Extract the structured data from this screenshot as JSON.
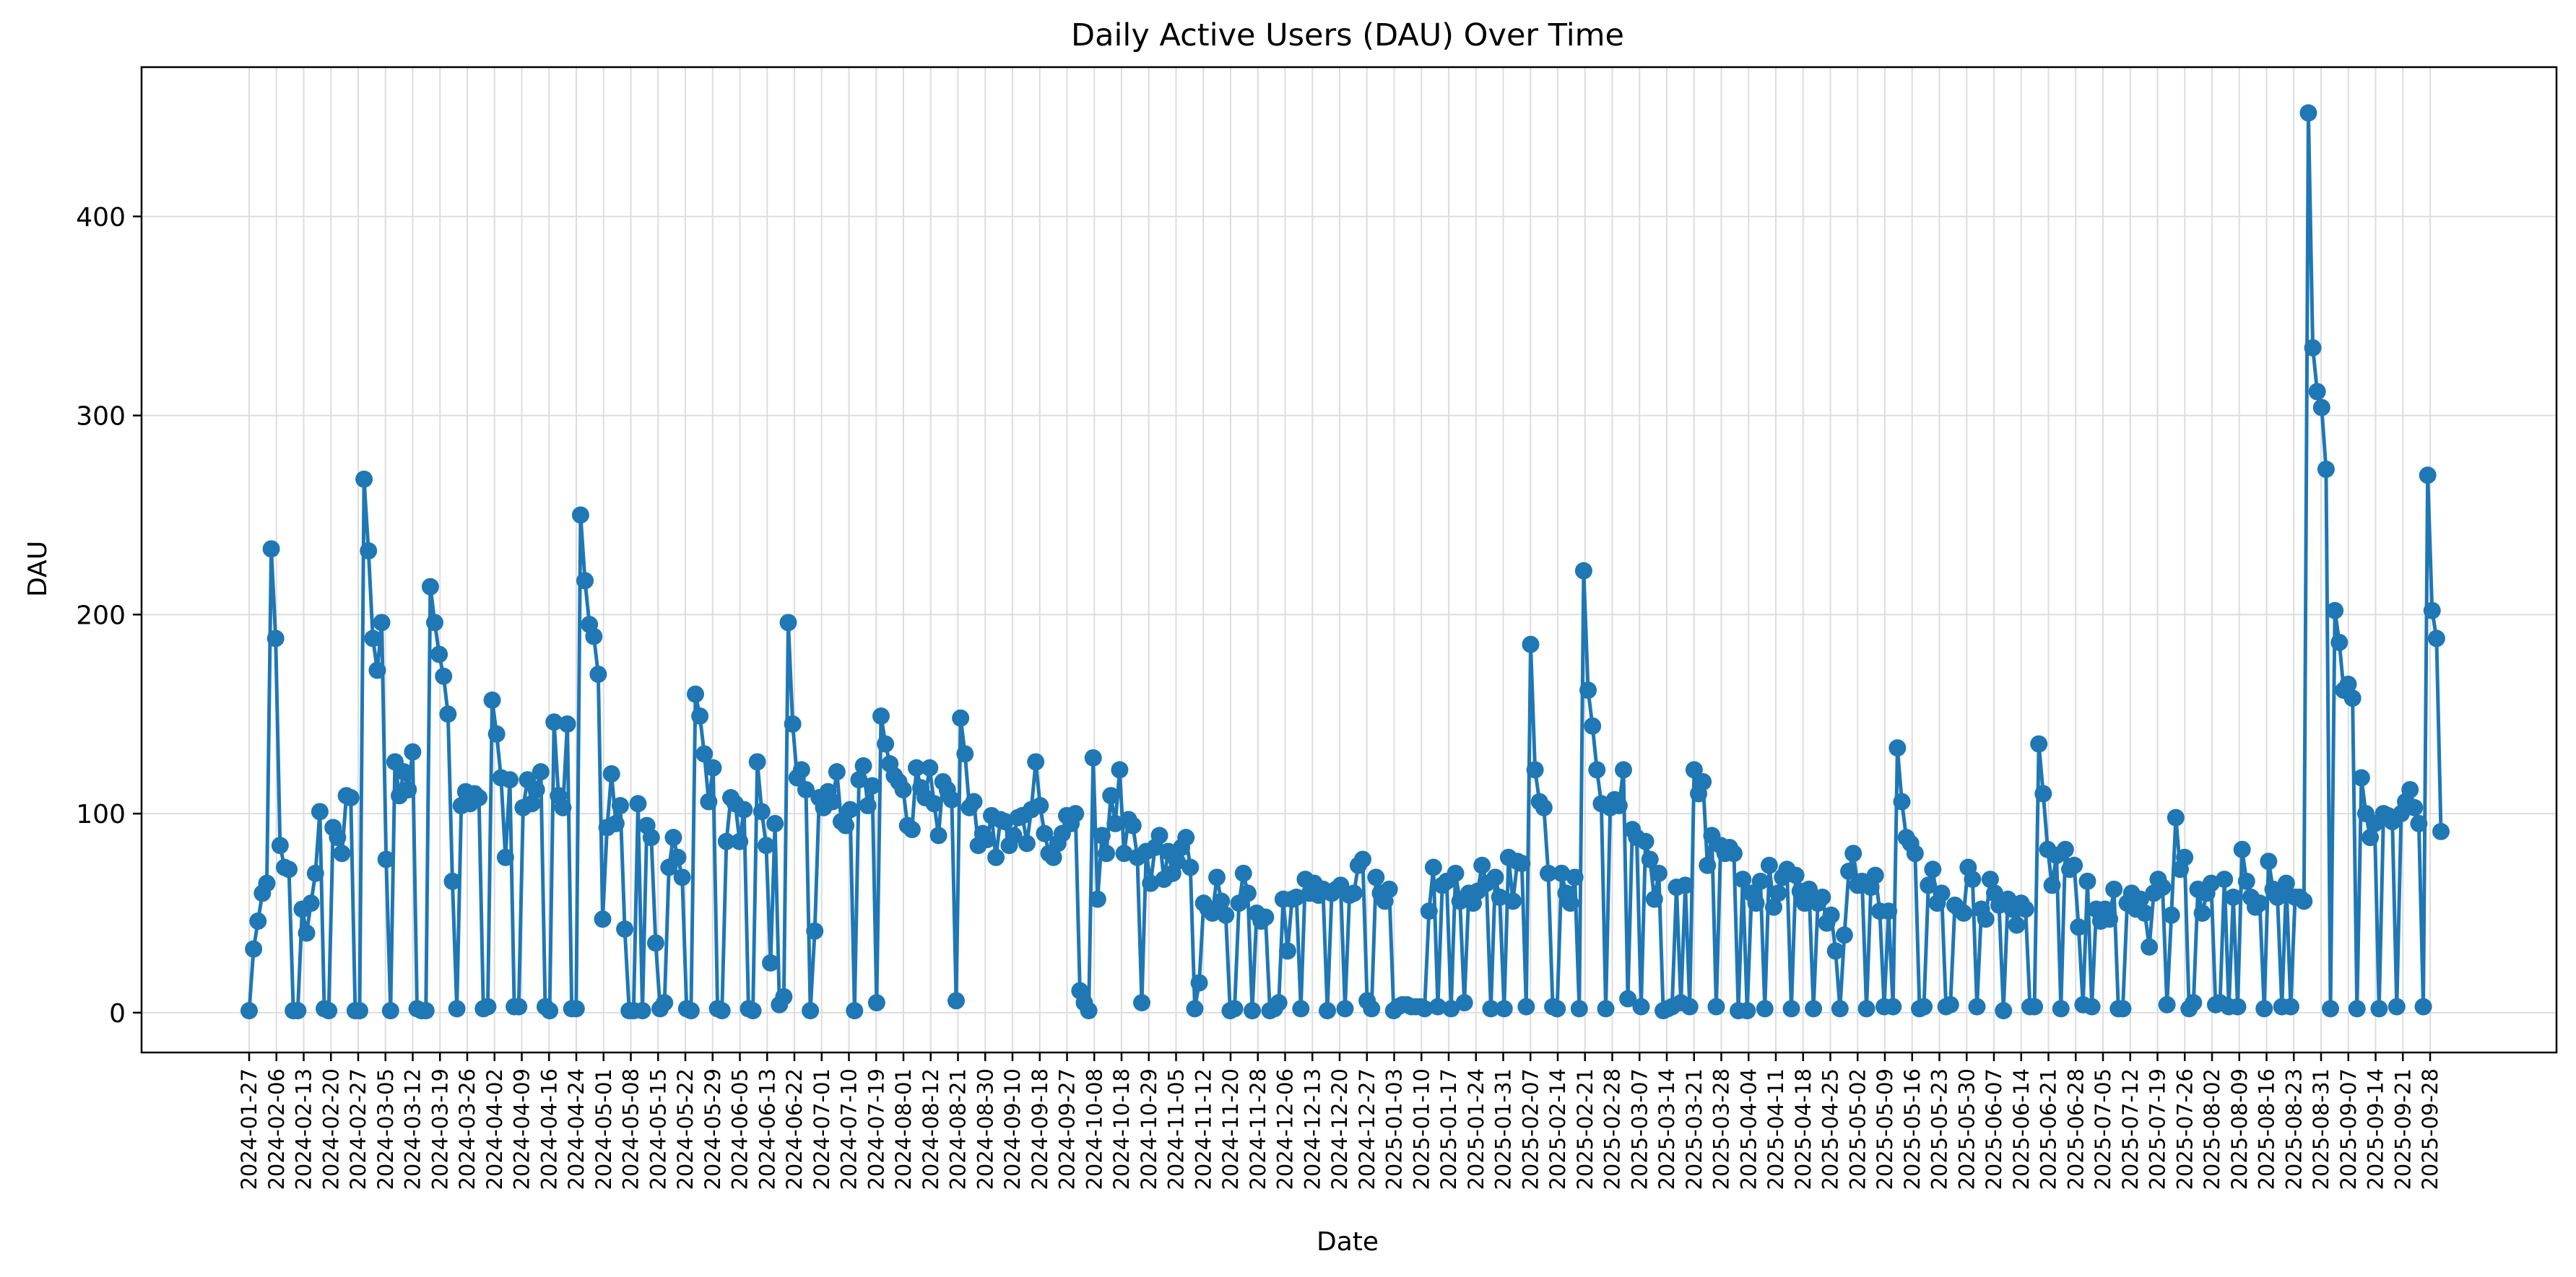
{
  "chart_data": {
    "type": "line",
    "title": "Daily Active Users (DAU) Over Time",
    "xlabel": "Date",
    "ylabel": "DAU",
    "ylim": [
      -20,
      475
    ],
    "yticks": [
      0,
      100,
      200,
      300,
      400
    ],
    "grid": true,
    "color": "#1f77b4",
    "x_tick_labels": [
      "2024-01-27",
      "2024-02-06",
      "2024-02-13",
      "2024-02-20",
      "2024-02-27",
      "2024-03-05",
      "2024-03-12",
      "2024-03-19",
      "2024-03-26",
      "2024-04-02",
      "2024-04-09",
      "2024-04-16",
      "2024-04-24",
      "2024-05-01",
      "2024-05-08",
      "2024-05-15",
      "2024-05-22",
      "2024-05-29",
      "2024-06-05",
      "2024-06-13",
      "2024-06-22",
      "2024-07-01",
      "2024-07-10",
      "2024-07-19",
      "2024-08-01",
      "2024-08-12",
      "2024-08-21",
      "2024-08-30",
      "2024-09-10",
      "2024-09-18",
      "2024-09-27",
      "2024-10-08",
      "2024-10-18",
      "2024-10-29",
      "2024-11-05",
      "2024-11-12",
      "2024-11-20",
      "2024-11-28",
      "2024-12-06",
      "2024-12-13",
      "2024-12-20",
      "2024-12-27",
      "2025-01-03",
      "2025-01-10",
      "2025-01-17",
      "2025-01-24",
      "2025-01-31",
      "2025-02-07",
      "2025-02-14",
      "2025-02-21",
      "2025-02-28",
      "2025-03-07",
      "2025-03-14",
      "2025-03-21",
      "2025-03-28",
      "2025-04-04",
      "2025-04-11",
      "2025-04-18",
      "2025-04-25",
      "2025-05-02",
      "2025-05-09",
      "2025-05-16",
      "2025-05-23",
      "2025-05-30",
      "2025-06-07",
      "2025-06-14",
      "2025-06-21",
      "2025-06-28",
      "2025-07-05",
      "2025-07-12",
      "2025-07-19",
      "2025-07-26",
      "2025-08-02",
      "2025-08-09",
      "2025-08-16",
      "2025-08-23",
      "2025-08-31",
      "2025-09-07",
      "2025-09-14",
      "2025-09-21",
      "2025-09-28"
    ],
    "series": [
      {
        "values": [
          1,
          32,
          46,
          60,
          65,
          233,
          188,
          84,
          73,
          72,
          1,
          1,
          52,
          40,
          55,
          70,
          101,
          2,
          1,
          93,
          88,
          80,
          109,
          108,
          1,
          1,
          268,
          232,
          188,
          172,
          196,
          77,
          1,
          126,
          109,
          121,
          112,
          131,
          2,
          1,
          1,
          214,
          196,
          180,
          169,
          150,
          66,
          2,
          104,
          111,
          105,
          110,
          108,
          2,
          3,
          157,
          140,
          118,
          78,
          117,
          3,
          3,
          103,
          117,
          105,
          112,
          121,
          3,
          1,
          146,
          109,
          103,
          145,
          2,
          2,
          250,
          217,
          195,
          189,
          170,
          47,
          93,
          120,
          95,
          104,
          42,
          1,
          1,
          105,
          1,
          94,
          88,
          35,
          2,
          5,
          73,
          88,
          78,
          68,
          2,
          1,
          160,
          149,
          130,
          106,
          123,
          2,
          1,
          86,
          108,
          105,
          86,
          102,
          2,
          1,
          126,
          101,
          84,
          25,
          95,
          4,
          8,
          196,
          145,
          118,
          122,
          112,
          1,
          41,
          108,
          103,
          111,
          106,
          121,
          96,
          94,
          102,
          1,
          117,
          124,
          104,
          114,
          5,
          149,
          135,
          125,
          119,
          116,
          112,
          94,
          92,
          123,
          113,
          108,
          123,
          105,
          89,
          116,
          112,
          107,
          6,
          148,
          130,
          103,
          106,
          84,
          90,
          87,
          99,
          78,
          97,
          96,
          84,
          89,
          98,
          99,
          85,
          102,
          126,
          104,
          90,
          80,
          78,
          85,
          90,
          99,
          95,
          100,
          11,
          5,
          1,
          128,
          57,
          89,
          80,
          109,
          95,
          122,
          80,
          97,
          94,
          78,
          5,
          81,
          65,
          83,
          89,
          67,
          81,
          70,
          76,
          83,
          88,
          73,
          2,
          15,
          55,
          52,
          50,
          68,
          56,
          49,
          1,
          2,
          55,
          70,
          60,
          1,
          50,
          46,
          48,
          1,
          2,
          5,
          57,
          31,
          57,
          58,
          2,
          67,
          60,
          65,
          59,
          62,
          1,
          60,
          62,
          64,
          2,
          59,
          60,
          74,
          77,
          6,
          2,
          68,
          60,
          56,
          62,
          1,
          3,
          4,
          4,
          3,
          3,
          3,
          2,
          51,
          73,
          3,
          64,
          66,
          2,
          70,
          56,
          5,
          60,
          55,
          61,
          74,
          65,
          2,
          68,
          58,
          2,
          78,
          56,
          76,
          75,
          3,
          185,
          122,
          106,
          103,
          70,
          3,
          2,
          70,
          60,
          55,
          68,
          2,
          222,
          162,
          144,
          122,
          105,
          2,
          103,
          107,
          104,
          122,
          7,
          92,
          88,
          3,
          86,
          77,
          57,
          70,
          1,
          2,
          3,
          63,
          5,
          64,
          3,
          122,
          110,
          116,
          74,
          89,
          3,
          84,
          80,
          83,
          80,
          1,
          67,
          1,
          60,
          55,
          66,
          2,
          74,
          53,
          60,
          68,
          72,
          2,
          69,
          61,
          55,
          62,
          2,
          55,
          58,
          45,
          49,
          31,
          2,
          39,
          71,
          80,
          64,
          66,
          2,
          63,
          69,
          51,
          3,
          51,
          3,
          133,
          106,
          88,
          85,
          80,
          2,
          3,
          64,
          72,
          55,
          60,
          3,
          4,
          54,
          52,
          50,
          73,
          67,
          3,
          52,
          47,
          67,
          60,
          54,
          1,
          57,
          52,
          44,
          55,
          52,
          3,
          3,
          135,
          110,
          82,
          64,
          79,
          2,
          82,
          72,
          74,
          43,
          4,
          66,
          3,
          52,
          46,
          52,
          47,
          62,
          2,
          2,
          55,
          60,
          52,
          57,
          50,
          33,
          60,
          67,
          63,
          4,
          49,
          98,
          72,
          78,
          2,
          5,
          62,
          50,
          60,
          65,
          4,
          5,
          67,
          3,
          58,
          3,
          82,
          66,
          58,
          53,
          55,
          2,
          76,
          62,
          58,
          3,
          65,
          3,
          58,
          58,
          56,
          452,
          334,
          312,
          304,
          273,
          2,
          202,
          186,
          162,
          165,
          158,
          2,
          118,
          100,
          88,
          95,
          2,
          100,
          99,
          96,
          3,
          100,
          106,
          112,
          103,
          95,
          3,
          270,
          202,
          188,
          91
        ]
      }
    ]
  }
}
